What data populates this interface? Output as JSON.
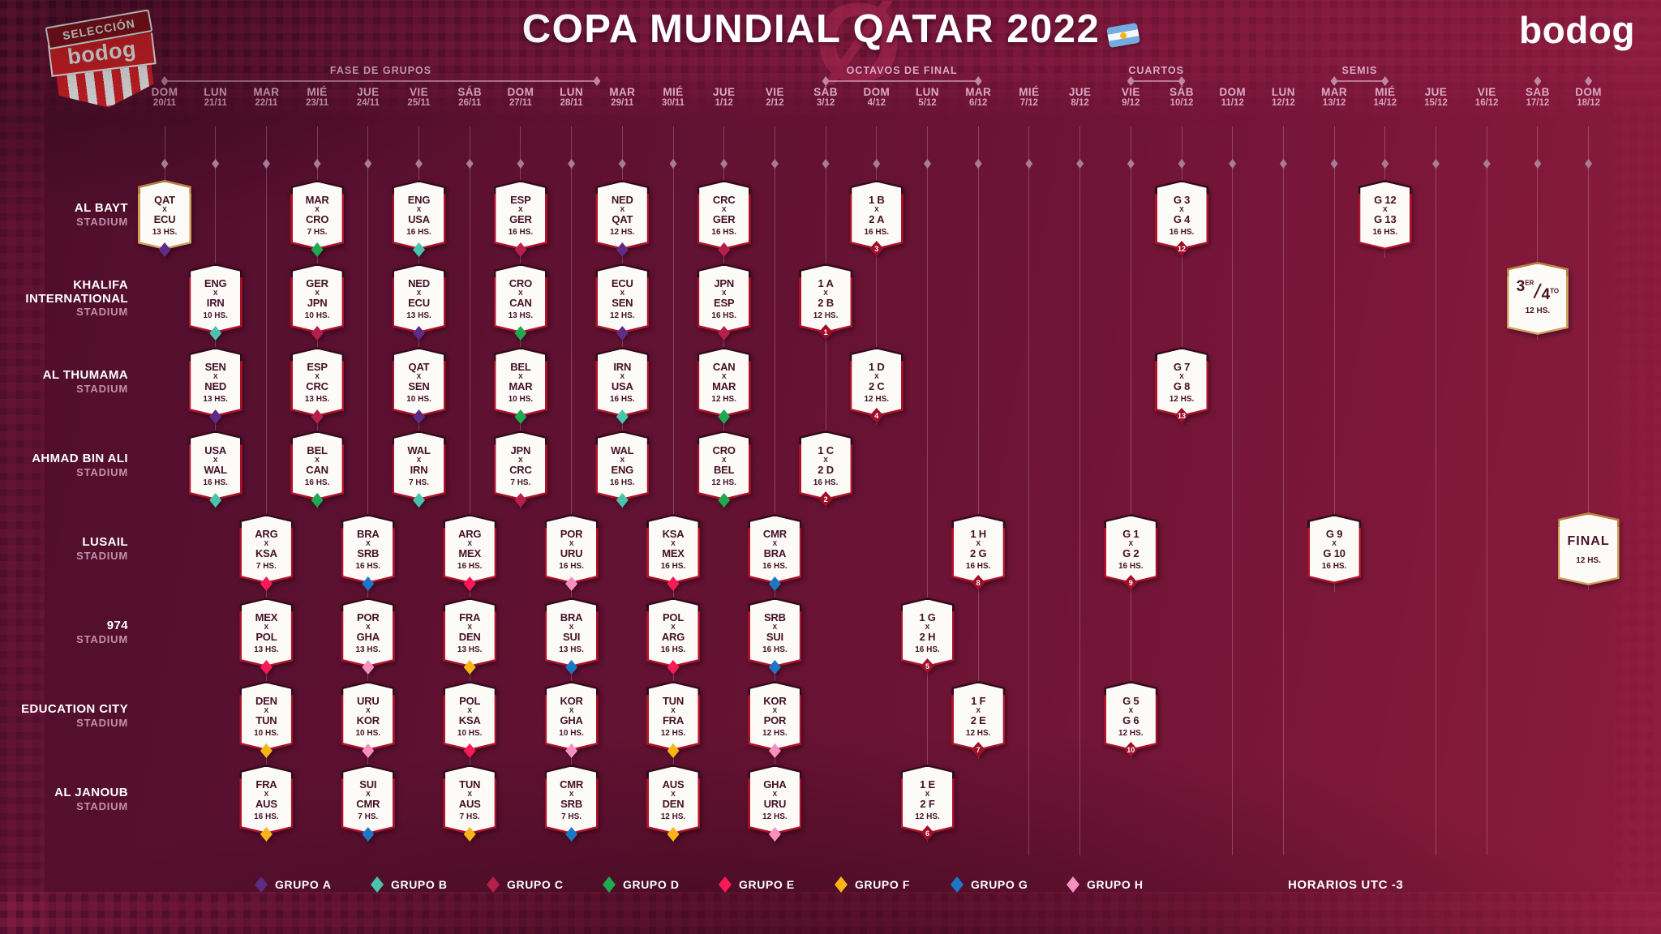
{
  "header": {
    "title": "COPA MUNDIAL QATAR 2022",
    "flag_icon": "argentina-flag",
    "brand": "bodog",
    "logo": {
      "top": "SELECCIÓN",
      "bottom": "bodog"
    }
  },
  "phases": [
    {
      "label": "FASE DE GRUPOS",
      "from": 1,
      "to": 9.5
    },
    {
      "label": "OCTAVOS DE FINAL",
      "from": 14,
      "to": 17
    },
    {
      "label": "CUARTOS",
      "from": 20,
      "to": 21
    },
    {
      "label": "SEMIS",
      "from": 24,
      "to": 25
    }
  ],
  "solo_diamond_cols": [
    28,
    29
  ],
  "days": [
    {
      "day": "DOM",
      "date": "20/11"
    },
    {
      "day": "LUN",
      "date": "21/11"
    },
    {
      "day": "MAR",
      "date": "22/11"
    },
    {
      "day": "MIÉ",
      "date": "23/11"
    },
    {
      "day": "JUE",
      "date": "24/11"
    },
    {
      "day": "VIE",
      "date": "25/11"
    },
    {
      "day": "SÁB",
      "date": "26/11"
    },
    {
      "day": "DOM",
      "date": "27/11"
    },
    {
      "day": "LUN",
      "date": "28/11"
    },
    {
      "day": "MAR",
      "date": "29/11"
    },
    {
      "day": "MIÉ",
      "date": "30/11"
    },
    {
      "day": "JUE",
      "date": "1/12"
    },
    {
      "day": "VIE",
      "date": "2/12"
    },
    {
      "day": "SÁB",
      "date": "3/12"
    },
    {
      "day": "DOM",
      "date": "4/12"
    },
    {
      "day": "LUN",
      "date": "5/12"
    },
    {
      "day": "MAR",
      "date": "6/12"
    },
    {
      "day": "MIÉ",
      "date": "7/12"
    },
    {
      "day": "JUE",
      "date": "8/12"
    },
    {
      "day": "VIE",
      "date": "9/12"
    },
    {
      "day": "SÁB",
      "date": "10/12"
    },
    {
      "day": "DOM",
      "date": "11/12"
    },
    {
      "day": "LUN",
      "date": "12/12"
    },
    {
      "day": "MAR",
      "date": "13/12"
    },
    {
      "day": "MIÉ",
      "date": "14/12"
    },
    {
      "day": "JUE",
      "date": "15/12"
    },
    {
      "day": "VIE",
      "date": "16/12"
    },
    {
      "day": "SAB",
      "date": "17/12"
    },
    {
      "day": "DOM",
      "date": "18/12"
    }
  ],
  "group_colors": {
    "A": "#5E2B85",
    "B": "#4BC4AD",
    "C": "#B61E4B",
    "D": "#1FA950",
    "E": "#FB1A57",
    "F": "#F8B517",
    "G": "#1C77C5",
    "H": "#F78FC1"
  },
  "stadiums": [
    {
      "name": "AL BAYT",
      "sub": "STADIUM",
      "matches": [
        {
          "col": 1,
          "t1": "QAT",
          "t2": "ECU",
          "time": "13 HS.",
          "dot": "A",
          "gold": true
        },
        {
          "col": 4,
          "t1": "MAR",
          "t2": "CRO",
          "time": "7 HS.",
          "dot": "D"
        },
        {
          "col": 6,
          "t1": "ENG",
          "t2": "USA",
          "time": "16 HS.",
          "dot": "B"
        },
        {
          "col": 8,
          "t1": "ESP",
          "t2": "GER",
          "time": "16 HS.",
          "dot": "C"
        },
        {
          "col": 10,
          "t1": "NED",
          "t2": "QAT",
          "time": "12 HS.",
          "dot": "A"
        },
        {
          "col": 12,
          "t1": "CRC",
          "t2": "GER",
          "time": "16 HS.",
          "dot": "C"
        },
        {
          "col": 15,
          "t1": "1 B",
          "t2": "2 A",
          "time": "16 HS.",
          "badge": "3"
        },
        {
          "col": 21,
          "t1": "G 3",
          "t2": "G 4",
          "time": "16 HS.",
          "badge": "12"
        },
        {
          "col": 25,
          "t1": "G 12",
          "t2": "G 13",
          "time": "16 HS."
        }
      ]
    },
    {
      "name": "KHALIFA INTERNATIONAL",
      "sub": "STADIUM",
      "matches": [
        {
          "col": 2,
          "t1": "ENG",
          "t2": "IRN",
          "time": "10 HS.",
          "dot": "B"
        },
        {
          "col": 4,
          "t1": "GER",
          "t2": "JPN",
          "time": "10 HS.",
          "dot": "C"
        },
        {
          "col": 6,
          "t1": "NED",
          "t2": "ECU",
          "time": "13 HS.",
          "dot": "A"
        },
        {
          "col": 8,
          "t1": "CRO",
          "t2": "CAN",
          "time": "13 HS.",
          "dot": "D"
        },
        {
          "col": 10,
          "t1": "ECU",
          "t2": "SEN",
          "time": "12 HS.",
          "dot": "A"
        },
        {
          "col": 12,
          "t1": "JPN",
          "t2": "ESP",
          "time": "16 HS.",
          "dot": "C"
        },
        {
          "col": 14,
          "t1": "1 A",
          "t2": "2 B",
          "time": "12 HS.",
          "badge": "1"
        },
        {
          "col": 28,
          "type": "third",
          "n1": "3",
          "s1": "ER",
          "n2": "4",
          "s2": "TO",
          "time": "12 HS.",
          "gold": true
        }
      ]
    },
    {
      "name": "AL THUMAMA",
      "sub": "STADIUM",
      "matches": [
        {
          "col": 2,
          "t1": "SEN",
          "t2": "NED",
          "time": "13 HS.",
          "dot": "A"
        },
        {
          "col": 4,
          "t1": "ESP",
          "t2": "CRC",
          "time": "13 HS.",
          "dot": "C"
        },
        {
          "col": 6,
          "t1": "QAT",
          "t2": "SEN",
          "time": "10 HS.",
          "dot": "A"
        },
        {
          "col": 8,
          "t1": "BEL",
          "t2": "MAR",
          "time": "10 HS.",
          "dot": "D"
        },
        {
          "col": 10,
          "t1": "IRN",
          "t2": "USA",
          "time": "16 HS.",
          "dot": "B"
        },
        {
          "col": 12,
          "t1": "CAN",
          "t2": "MAR",
          "time": "12 HS.",
          "dot": "D"
        },
        {
          "col": 15,
          "t1": "1 D",
          "t2": "2 C",
          "time": "12 HS.",
          "badge": "4"
        },
        {
          "col": 21,
          "t1": "G 7",
          "t2": "G 8",
          "time": "12 HS.",
          "badge": "13"
        }
      ]
    },
    {
      "name": "AHMAD BIN ALI",
      "sub": "STADIUM",
      "matches": [
        {
          "col": 2,
          "t1": "USA",
          "t2": "WAL",
          "time": "16 HS.",
          "dot": "B"
        },
        {
          "col": 4,
          "t1": "BEL",
          "t2": "CAN",
          "time": "16 HS.",
          "dot": "D"
        },
        {
          "col": 6,
          "t1": "WAL",
          "t2": "IRN",
          "time": "7 HS.",
          "dot": "B"
        },
        {
          "col": 8,
          "t1": "JPN",
          "t2": "CRC",
          "time": "7 HS.",
          "dot": "C"
        },
        {
          "col": 10,
          "t1": "WAL",
          "t2": "ENG",
          "time": "16 HS.",
          "dot": "B"
        },
        {
          "col": 12,
          "t1": "CRO",
          "t2": "BEL",
          "time": "12 HS.",
          "dot": "D"
        },
        {
          "col": 14,
          "t1": "1 C",
          "t2": "2 D",
          "time": "16 HS.",
          "badge": "2"
        }
      ]
    },
    {
      "name": "LUSAIL",
      "sub": "STADIUM",
      "matches": [
        {
          "col": 3,
          "t1": "ARG",
          "t2": "KSA",
          "time": "7 HS.",
          "dot": "E"
        },
        {
          "col": 5,
          "t1": "BRA",
          "t2": "SRB",
          "time": "16 HS.",
          "dot": "G"
        },
        {
          "col": 7,
          "t1": "ARG",
          "t2": "MEX",
          "time": "16 HS.",
          "dot": "E"
        },
        {
          "col": 9,
          "t1": "POR",
          "t2": "URU",
          "time": "16 HS.",
          "dot": "H"
        },
        {
          "col": 11,
          "t1": "KSA",
          "t2": "MEX",
          "time": "16 HS.",
          "dot": "E"
        },
        {
          "col": 13,
          "t1": "CMR",
          "t2": "BRA",
          "time": "16 HS.",
          "dot": "G"
        },
        {
          "col": 17,
          "t1": "1 H",
          "t2": "2 G",
          "time": "16 HS.",
          "badge": "8"
        },
        {
          "col": 20,
          "t1": "G 1",
          "t2": "G 2",
          "time": "16 HS.",
          "badge": "9"
        },
        {
          "col": 24,
          "t1": "G 9",
          "t2": "G 10",
          "time": "16 HS."
        },
        {
          "col": 29,
          "type": "final",
          "label": "FINAL",
          "time": "12 HS.",
          "gold": true
        }
      ]
    },
    {
      "name": "974",
      "sub": "STADIUM",
      "matches": [
        {
          "col": 3,
          "t1": "MEX",
          "t2": "POL",
          "time": "13 HS.",
          "dot": "E"
        },
        {
          "col": 5,
          "t1": "POR",
          "t2": "GHA",
          "time": "13 HS.",
          "dot": "H"
        },
        {
          "col": 7,
          "t1": "FRA",
          "t2": "DEN",
          "time": "13 HS.",
          "dot": "F"
        },
        {
          "col": 9,
          "t1": "BRA",
          "t2": "SUI",
          "time": "13 HS.",
          "dot": "G"
        },
        {
          "col": 11,
          "t1": "POL",
          "t2": "ARG",
          "time": "16 HS.",
          "dot": "E"
        },
        {
          "col": 13,
          "t1": "SRB",
          "t2": "SUI",
          "time": "16 HS.",
          "dot": "G"
        },
        {
          "col": 16,
          "t1": "1 G",
          "t2": "2 H",
          "time": "16 HS.",
          "badge": "5"
        }
      ]
    },
    {
      "name": "EDUCATION CITY",
      "sub": "STADIUM",
      "matches": [
        {
          "col": 3,
          "t1": "DEN",
          "t2": "TUN",
          "time": "10 HS.",
          "dot": "F"
        },
        {
          "col": 5,
          "t1": "URU",
          "t2": "KOR",
          "time": "10 HS.",
          "dot": "H"
        },
        {
          "col": 7,
          "t1": "POL",
          "t2": "KSA",
          "time": "10 HS.",
          "dot": "E"
        },
        {
          "col": 9,
          "t1": "KOR",
          "t2": "GHA",
          "time": "10 HS.",
          "dot": "H"
        },
        {
          "col": 11,
          "t1": "TUN",
          "t2": "FRA",
          "time": "12 HS.",
          "dot": "F"
        },
        {
          "col": 13,
          "t1": "KOR",
          "t2": "POR",
          "time": "12 HS.",
          "dot": "H"
        },
        {
          "col": 17,
          "t1": "1 F",
          "t2": "2 E",
          "time": "12 HS.",
          "badge": "7"
        },
        {
          "col": 20,
          "t1": "G 5",
          "t2": "G 6",
          "time": "12 HS.",
          "badge": "10"
        }
      ]
    },
    {
      "name": "AL JANOUB",
      "sub": "STADIUM",
      "matches": [
        {
          "col": 3,
          "t1": "FRA",
          "t2": "AUS",
          "time": "16 HS.",
          "dot": "F"
        },
        {
          "col": 5,
          "t1": "SUI",
          "t2": "CMR",
          "time": "7 HS.",
          "dot": "G"
        },
        {
          "col": 7,
          "t1": "TUN",
          "t2": "AUS",
          "time": "7 HS.",
          "dot": "F"
        },
        {
          "col": 9,
          "t1": "CMR",
          "t2": "SRB",
          "time": "7 HS.",
          "dot": "G"
        },
        {
          "col": 11,
          "t1": "AUS",
          "t2": "DEN",
          "time": "12 HS.",
          "dot": "F"
        },
        {
          "col": 13,
          "t1": "GHA",
          "t2": "URU",
          "time": "12 HS.",
          "dot": "H"
        },
        {
          "col": 16,
          "t1": "1 E",
          "t2": "2 F",
          "time": "12 HS.",
          "badge": "6"
        }
      ]
    }
  ],
  "legend": {
    "items": [
      {
        "label": "GRUPO",
        "letter": "A",
        "color": "A"
      },
      {
        "label": "GRUPO",
        "letter": "B",
        "color": "B"
      },
      {
        "label": "GRUPO",
        "letter": "C",
        "color": "C"
      },
      {
        "label": "GRUPO",
        "letter": "D",
        "color": "D"
      },
      {
        "label": "GRUPO",
        "letter": "E",
        "color": "E"
      },
      {
        "label": "GRUPO",
        "letter": "F",
        "color": "F"
      },
      {
        "label": "GRUPO",
        "letter": "G",
        "color": "G"
      },
      {
        "label": "GRUPO",
        "letter": "H",
        "color": "H"
      }
    ],
    "time_note_label": "HORARIOS",
    "time_note_value": "UTC -3"
  }
}
